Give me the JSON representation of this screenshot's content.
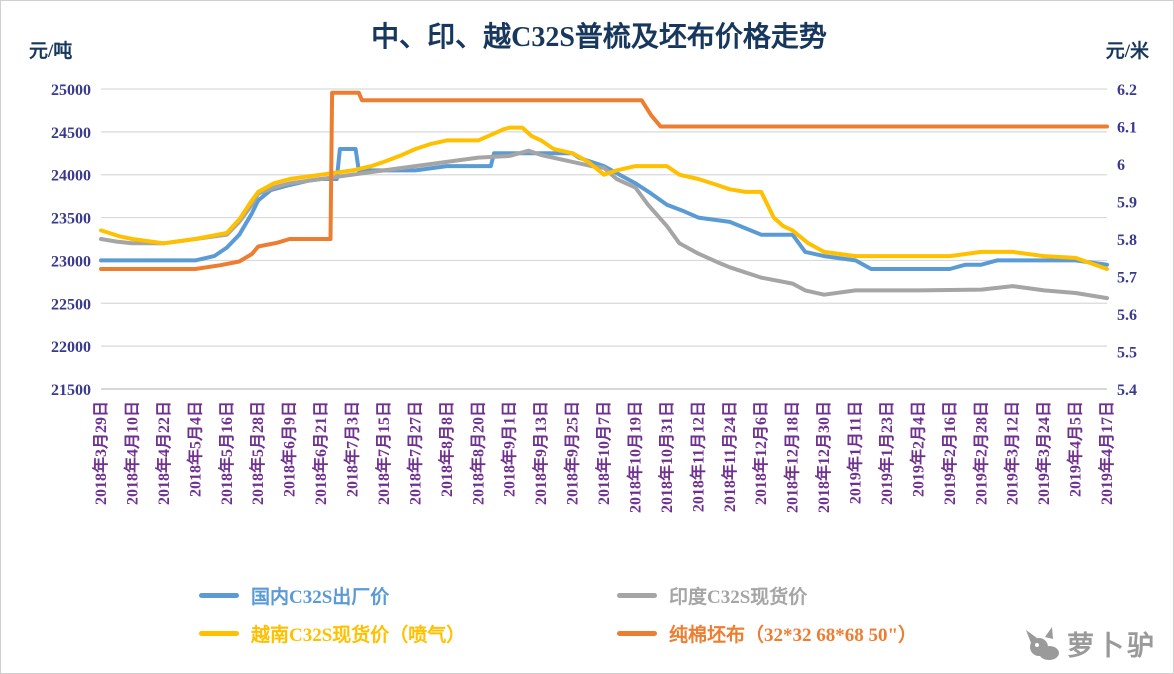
{
  "title": "中、印、越C32S普梳及坯布价格走势",
  "axes": {
    "left_unit": "元/吨",
    "right_unit": "元/米",
    "left_ticks": [
      25000,
      24500,
      24000,
      23500,
      23000,
      22500,
      22000,
      21500
    ],
    "right_ticks": [
      "6.2",
      "6.1",
      "6",
      "5.9",
      "5.8",
      "5.7",
      "5.6",
      "5.5",
      "5.4"
    ]
  },
  "colors": {
    "title": "#17375D",
    "y_axis_labels": "#3A3A8C",
    "x_axis_labels": "#70308F",
    "grid": "#D9D9D9",
    "axis_line": "#BFBFBF"
  },
  "watermark": {
    "text": "萝卜驴"
  },
  "chart_data": {
    "type": "line",
    "title": "中、印、越C32S普梳及坯布价格走势",
    "xlabel": "",
    "ylabel_left": "元/吨",
    "ylabel_right": "元/米",
    "ylim_left": [
      21500,
      25000
    ],
    "ylim_right": [
      5.4,
      6.2
    ],
    "grid": true,
    "legend_position": "bottom",
    "categories": [
      "2018年3月29日",
      "2018年4月10日",
      "2018年4月22日",
      "2018年5月4日",
      "2018年5月16日",
      "2018年5月28日",
      "2018年6月9日",
      "2018年6月21日",
      "2018年7月3日",
      "2018年7月15日",
      "2018年7月27日",
      "2018年8月8日",
      "2018年8月20日",
      "2018年9月1日",
      "2018年9月13日",
      "2018年9月25日",
      "2018年10月7日",
      "2018年10月19日",
      "2018年10月31日",
      "2018年11月12日",
      "2018年11月24日",
      "2018年12月6日",
      "2018年12月18日",
      "2018年12月30日",
      "2019年1月11日",
      "2019年1月23日",
      "2019年2月4日",
      "2019年2月16日",
      "2019年2月28日",
      "2019年3月12日",
      "2019年3月24日",
      "2019年4月5日",
      "2019年4月17日"
    ],
    "series": [
      {
        "name": "国内C32S出厂价",
        "color": "#5B9BD5",
        "axis": "left",
        "points": [
          [
            0,
            23000
          ],
          [
            3,
            23000
          ],
          [
            3.6,
            23050
          ],
          [
            4,
            23150
          ],
          [
            4.4,
            23300
          ],
          [
            4.8,
            23550
          ],
          [
            5,
            23700
          ],
          [
            5.4,
            23820
          ],
          [
            6,
            23880
          ],
          [
            6.6,
            23930
          ],
          [
            7,
            23950
          ],
          [
            7.5,
            23950
          ],
          [
            7.6,
            24300
          ],
          [
            8.1,
            24300
          ],
          [
            8.2,
            24050
          ],
          [
            9,
            24050
          ],
          [
            10,
            24050
          ],
          [
            11,
            24100
          ],
          [
            12,
            24100
          ],
          [
            12.4,
            24100
          ],
          [
            12.5,
            24250
          ],
          [
            14,
            24250
          ],
          [
            15,
            24250
          ],
          [
            15.2,
            24200
          ],
          [
            16,
            24100
          ],
          [
            16.5,
            24000
          ],
          [
            17,
            23900
          ],
          [
            17.5,
            23780
          ],
          [
            18,
            23650
          ],
          [
            18.5,
            23580
          ],
          [
            19,
            23500
          ],
          [
            20,
            23450
          ],
          [
            21,
            23300
          ],
          [
            22,
            23300
          ],
          [
            22.4,
            23100
          ],
          [
            23,
            23050
          ],
          [
            24,
            23000
          ],
          [
            24.5,
            22900
          ],
          [
            26,
            22900
          ],
          [
            27,
            22900
          ],
          [
            27.5,
            22950
          ],
          [
            28,
            22950
          ],
          [
            28.5,
            23000
          ],
          [
            31,
            23000
          ],
          [
            32,
            22950
          ]
        ]
      },
      {
        "name": "印度C32S现货价",
        "color": "#A5A5A5",
        "axis": "left",
        "points": [
          [
            0,
            23250
          ],
          [
            0.5,
            23220
          ],
          [
            1,
            23200
          ],
          [
            2,
            23200
          ],
          [
            3,
            23250
          ],
          [
            4,
            23300
          ],
          [
            4.4,
            23450
          ],
          [
            4.8,
            23650
          ],
          [
            5,
            23780
          ],
          [
            5.5,
            23850
          ],
          [
            6,
            23900
          ],
          [
            7,
            23950
          ],
          [
            8,
            24000
          ],
          [
            9,
            24050
          ],
          [
            10,
            24100
          ],
          [
            11,
            24150
          ],
          [
            12,
            24200
          ],
          [
            13,
            24220
          ],
          [
            13.6,
            24280
          ],
          [
            14,
            24230
          ],
          [
            15,
            24150
          ],
          [
            15.6,
            24100
          ],
          [
            16,
            24080
          ],
          [
            16.4,
            23950
          ],
          [
            17,
            23850
          ],
          [
            17.4,
            23650
          ],
          [
            18,
            23400
          ],
          [
            18.4,
            23200
          ],
          [
            19,
            23080
          ],
          [
            19.6,
            22980
          ],
          [
            20,
            22920
          ],
          [
            21,
            22800
          ],
          [
            22,
            22730
          ],
          [
            22.4,
            22650
          ],
          [
            23,
            22600
          ],
          [
            24,
            22650
          ],
          [
            26,
            22650
          ],
          [
            28,
            22660
          ],
          [
            29,
            22700
          ],
          [
            30,
            22650
          ],
          [
            31,
            22620
          ],
          [
            32,
            22560
          ]
        ]
      },
      {
        "name": "越南C32S现货价（喷气）",
        "color": "#FFC000",
        "axis": "left",
        "points": [
          [
            0,
            23350
          ],
          [
            0.6,
            23280
          ],
          [
            1,
            23250
          ],
          [
            2,
            23200
          ],
          [
            3,
            23250
          ],
          [
            4,
            23320
          ],
          [
            4.4,
            23480
          ],
          [
            4.8,
            23700
          ],
          [
            5,
            23800
          ],
          [
            5.5,
            23900
          ],
          [
            6,
            23950
          ],
          [
            7,
            24000
          ],
          [
            8,
            24050
          ],
          [
            8.6,
            24100
          ],
          [
            9,
            24150
          ],
          [
            9.5,
            24220
          ],
          [
            10,
            24300
          ],
          [
            10.5,
            24360
          ],
          [
            11,
            24400
          ],
          [
            12,
            24400
          ],
          [
            12.5,
            24480
          ],
          [
            12.8,
            24530
          ],
          [
            13,
            24550
          ],
          [
            13.4,
            24550
          ],
          [
            13.7,
            24450
          ],
          [
            14,
            24400
          ],
          [
            14.4,
            24300
          ],
          [
            15,
            24250
          ],
          [
            15.5,
            24150
          ],
          [
            16,
            24000
          ],
          [
            16.4,
            24050
          ],
          [
            17,
            24100
          ],
          [
            18,
            24100
          ],
          [
            18.4,
            24000
          ],
          [
            19,
            23950
          ],
          [
            19.6,
            23880
          ],
          [
            20,
            23830
          ],
          [
            20.5,
            23800
          ],
          [
            21,
            23800
          ],
          [
            21.4,
            23500
          ],
          [
            21.7,
            23400
          ],
          [
            22,
            23350
          ],
          [
            22.5,
            23200
          ],
          [
            23,
            23100
          ],
          [
            24,
            23050
          ],
          [
            26,
            23050
          ],
          [
            27,
            23050
          ],
          [
            28,
            23100
          ],
          [
            29,
            23100
          ],
          [
            30,
            23050
          ],
          [
            31,
            23030
          ],
          [
            32,
            22900
          ]
        ]
      },
      {
        "name": "纯棉坯布（32*32 68*68 50\"）",
        "color": "#ED7D31",
        "axis": "right",
        "points": [
          [
            0,
            5.72
          ],
          [
            3,
            5.72
          ],
          [
            3.8,
            5.73
          ],
          [
            4.4,
            5.74
          ],
          [
            4.8,
            5.76
          ],
          [
            5,
            5.78
          ],
          [
            5.6,
            5.79
          ],
          [
            6,
            5.8
          ],
          [
            7.3,
            5.8
          ],
          [
            7.35,
            6.19
          ],
          [
            8.2,
            6.19
          ],
          [
            8.3,
            6.17
          ],
          [
            17.2,
            6.17
          ],
          [
            17.5,
            6.13
          ],
          [
            17.8,
            6.1
          ],
          [
            32,
            6.1
          ]
        ]
      }
    ]
  }
}
